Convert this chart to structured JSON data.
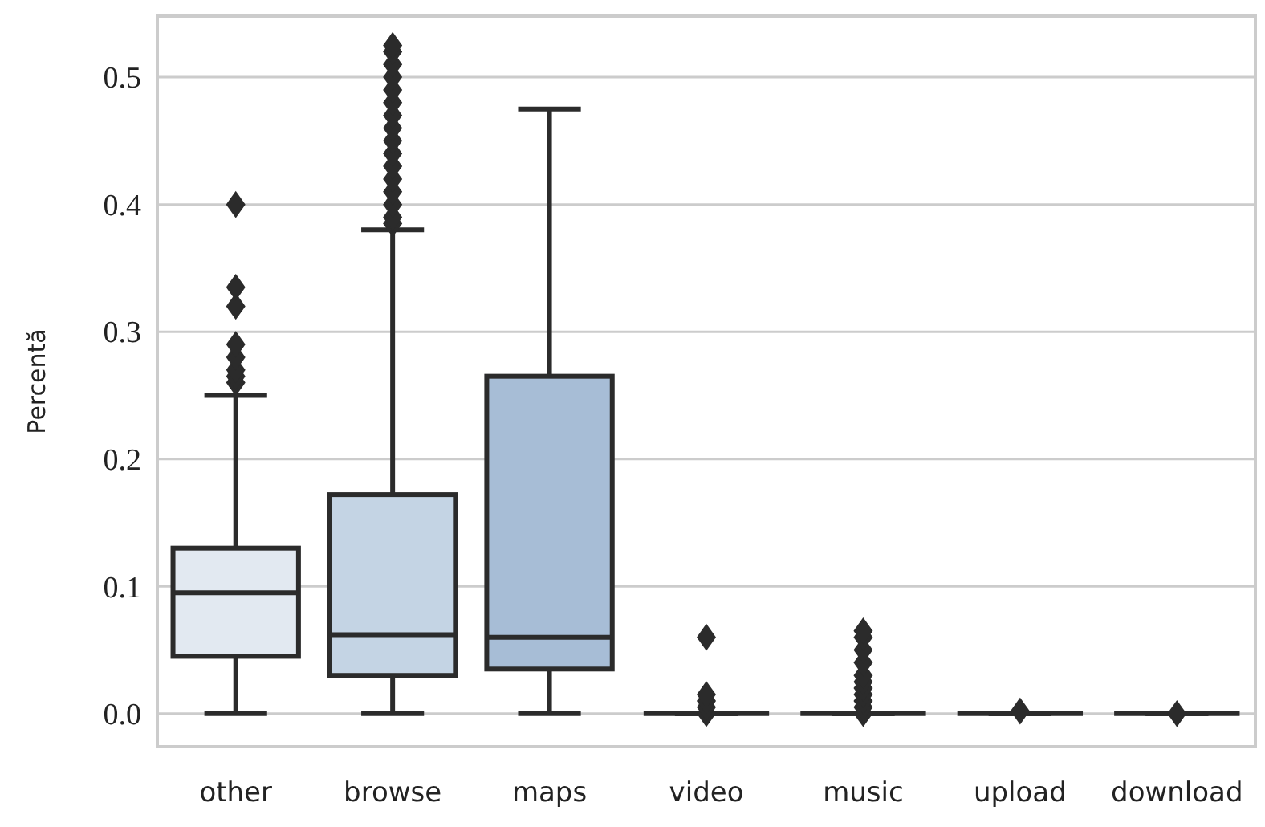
{
  "chart_data": {
    "type": "box",
    "ylabel": "Percentă",
    "categories": [
      "other",
      "browse",
      "maps",
      "video",
      "music",
      "upload",
      "download"
    ],
    "colors": [
      "#e2e9f1",
      "#c4d4e4",
      "#a7bdd6",
      null,
      null,
      null,
      null
    ],
    "boxes": [
      {
        "low": 0,
        "q1": 0.045,
        "median": 0.095,
        "q3": 0.13,
        "high": 0.25,
        "outliers": [
          0.26,
          0.265,
          0.27,
          0.28,
          0.29,
          0.32,
          0.335,
          0.4
        ]
      },
      {
        "low": 0,
        "q1": 0.03,
        "median": 0.062,
        "q3": 0.172,
        "high": 0.38,
        "outliers": [
          0.385,
          0.39,
          0.4,
          0.41,
          0.42,
          0.43,
          0.44,
          0.45,
          0.46,
          0.47,
          0.48,
          0.49,
          0.5,
          0.51,
          0.52,
          0.525
        ]
      },
      {
        "low": 0,
        "q1": 0.035,
        "median": 0.06,
        "q3": 0.265,
        "high": 0.475
      },
      {
        "low": 0,
        "q1": 0,
        "median": 0,
        "q3": 0,
        "high": 0,
        "outliers": [
          0,
          0.005,
          0.01,
          0.015,
          0.06
        ]
      },
      {
        "low": 0,
        "q1": 0,
        "median": 0,
        "q3": 0,
        "high": 0,
        "outliers": [
          0,
          0.005,
          0.01,
          0.015,
          0.02,
          0.025,
          0.03,
          0.04,
          0.05,
          0.06,
          0.065
        ]
      },
      {
        "low": 0,
        "q1": 0,
        "median": 0,
        "q3": 0,
        "high": 0,
        "outliers": [
          0.002
        ]
      },
      {
        "low": 0,
        "q1": 0,
        "median": 0,
        "q3": 0,
        "high": 0,
        "outliers": [
          0
        ]
      }
    ],
    "ylim": [
      -0.026,
      0.548
    ],
    "yticks": [
      {
        "value": 0,
        "label": "0.0"
      },
      {
        "value": 0.1,
        "label": "0.1"
      },
      {
        "value": 0.2,
        "label": "0.2"
      },
      {
        "value": 0.3,
        "label": "0.3"
      },
      {
        "value": 0.4,
        "label": "0.4"
      },
      {
        "value": 0.5,
        "label": "0.5"
      }
    ],
    "grid": "y",
    "marker": "diamond"
  }
}
